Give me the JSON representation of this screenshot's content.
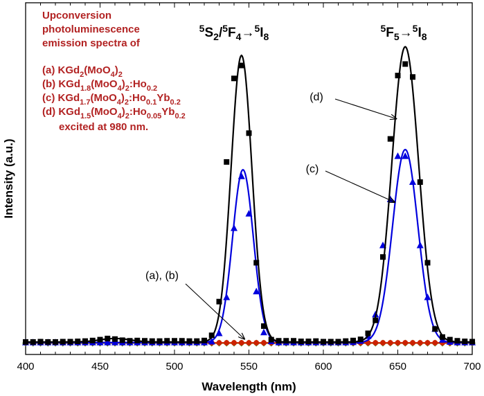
{
  "chart_data": {
    "type": "line",
    "title": "",
    "xlabel": "Wavelength (nm)",
    "ylabel": "Intensity (a.u.)",
    "xlim": [
      400,
      700
    ],
    "ylim": [
      0,
      100
    ],
    "x_ticks": [
      400,
      450,
      500,
      550,
      600,
      650,
      700
    ],
    "legend": {
      "heading": [
        "Upconversion",
        "photoluminescence",
        "emission spectra of"
      ],
      "entries": [
        {
          "id": "a",
          "parts": [
            [
              "(a) KGd",
              ""
            ],
            [
              "2",
              "sub"
            ],
            [
              "(MoO",
              ""
            ],
            [
              "4",
              "sub"
            ],
            [
              ")",
              ""
            ],
            [
              "2",
              "sub"
            ]
          ]
        },
        {
          "id": "b",
          "parts": [
            [
              "(b) KGd",
              ""
            ],
            [
              "1.8",
              "sub"
            ],
            [
              "(MoO",
              ""
            ],
            [
              "4",
              "sub"
            ],
            [
              ")",
              ""
            ],
            [
              "2",
              "sub"
            ],
            [
              ":Ho",
              ""
            ],
            [
              "0.2",
              "sub"
            ]
          ]
        },
        {
          "id": "c",
          "parts": [
            [
              "(c) KGd",
              ""
            ],
            [
              "1.7",
              "sub"
            ],
            [
              "(MoO",
              ""
            ],
            [
              "4",
              "sub"
            ],
            [
              ")",
              ""
            ],
            [
              "2",
              "sub"
            ],
            [
              ":Ho",
              ""
            ],
            [
              "0.1",
              "sub"
            ],
            [
              "Yb",
              ""
            ],
            [
              "0.2",
              "sub"
            ]
          ]
        },
        {
          "id": "d",
          "parts": [
            [
              "(d) KGd",
              ""
            ],
            [
              "1.5",
              "sub"
            ],
            [
              "(MoO",
              ""
            ],
            [
              "4",
              "sub"
            ],
            [
              ")",
              ""
            ],
            [
              "2",
              "sub"
            ],
            [
              ":Ho",
              ""
            ],
            [
              "0.05",
              "sub"
            ],
            [
              "Yb",
              ""
            ],
            [
              "0.2",
              "sub"
            ]
          ]
        }
      ],
      "footer": "excited at 980 nm."
    },
    "peak_labels": [
      {
        "x": 545,
        "parts": [
          [
            "5",
            "sup"
          ],
          [
            "S",
            ""
          ],
          [
            "2",
            "sub"
          ],
          [
            "/",
            ""
          ],
          [
            "5",
            "sup"
          ],
          [
            "F",
            ""
          ],
          [
            "4",
            "sub"
          ],
          [
            "→",
            ""
          ],
          [
            "5",
            "sup"
          ],
          [
            "I",
            ""
          ],
          [
            "8",
            "sub"
          ]
        ]
      },
      {
        "x": 655,
        "parts": [
          [
            "5",
            "sup"
          ],
          [
            "F",
            ""
          ],
          [
            "5",
            "sub"
          ],
          [
            "→",
            ""
          ],
          [
            "5",
            "sup"
          ],
          [
            "I",
            ""
          ],
          [
            "8",
            "sub"
          ]
        ]
      }
    ],
    "annotations": [
      {
        "text": "(d)",
        "target_x": 649,
        "target_y": 78
      },
      {
        "text": "(c)",
        "target_x": 648,
        "target_y": 49
      },
      {
        "text": "(a), (b)",
        "target_x": 547,
        "target_y": 1.5
      }
    ],
    "series": [
      {
        "name": "(d)",
        "color": "#000000",
        "marker": "square",
        "baseline": 0.5,
        "peaks": [
          {
            "center": 545,
            "sigma": 7.0,
            "height": 99.5
          },
          {
            "center": 655,
            "sigma": 9.0,
            "height": 102.5
          },
          {
            "center": 460,
            "sigma": 10.0,
            "height": 1.2
          }
        ],
        "markers_x": [
          400,
          405,
          410,
          415,
          420,
          425,
          430,
          435,
          440,
          445,
          450,
          455,
          460,
          465,
          470,
          475,
          480,
          485,
          490,
          495,
          500,
          505,
          510,
          515,
          520,
          525,
          530,
          535,
          540,
          545,
          550,
          555,
          560,
          565,
          570,
          575,
          580,
          585,
          590,
          595,
          600,
          605,
          610,
          615,
          620,
          625,
          630,
          635,
          640,
          645,
          650,
          655,
          660,
          665,
          670,
          675,
          680,
          685,
          690,
          695,
          700
        ],
        "markers_y": [
          0.5,
          0.5,
          0.6,
          0.5,
          0.5,
          0.6,
          0.6,
          0.7,
          0.8,
          1.0,
          1.3,
          1.7,
          1.5,
          1.1,
          0.9,
          1.0,
          0.9,
          0.8,
          0.8,
          0.9,
          0.9,
          0.9,
          0.8,
          0.8,
          1.0,
          2.8,
          14.5,
          63.0,
          92.0,
          96.5,
          73.0,
          28.0,
          6.0,
          1.3,
          0.9,
          0.9,
          0.9,
          0.7,
          0.7,
          0.8,
          0.6,
          0.6,
          0.6,
          0.8,
          1.0,
          1.4,
          3.5,
          8.0,
          30.0,
          71.0,
          93.0,
          97.0,
          92.5,
          56.0,
          28.0,
          5.0,
          2.2,
          1.3,
          0.9,
          0.7,
          0.6
        ]
      },
      {
        "name": "(c)",
        "color": "#0000dd",
        "marker": "triangle",
        "baseline": 0.3,
        "peaks": [
          {
            "center": 546,
            "sigma": 7.0,
            "height": 60.0
          },
          {
            "center": 655,
            "sigma": 8.5,
            "height": 67.0
          }
        ],
        "markers_x": [
          400,
          405,
          410,
          415,
          420,
          425,
          430,
          435,
          440,
          445,
          450,
          455,
          460,
          465,
          470,
          475,
          480,
          485,
          490,
          495,
          500,
          505,
          510,
          515,
          520,
          525,
          530,
          535,
          540,
          545,
          550,
          555,
          560,
          565,
          570,
          575,
          580,
          585,
          590,
          595,
          600,
          605,
          610,
          615,
          620,
          625,
          630,
          635,
          640,
          645,
          650,
          655,
          660,
          665,
          670,
          675,
          680,
          685,
          690,
          695,
          700
        ],
        "markers_y": [
          0.3,
          0.3,
          0.3,
          0.3,
          0.3,
          0.3,
          0.3,
          0.3,
          0.3,
          0.3,
          0.3,
          0.3,
          0.3,
          0.3,
          0.3,
          0.3,
          0.3,
          0.3,
          0.3,
          0.3,
          0.3,
          0.3,
          0.3,
          0.3,
          0.3,
          0.6,
          3.5,
          16.0,
          40.0,
          58.0,
          45.0,
          18.0,
          3.8,
          0.7,
          0.3,
          0.3,
          0.3,
          0.3,
          0.3,
          0.3,
          0.3,
          0.3,
          0.3,
          0.3,
          0.4,
          0.8,
          2.5,
          10.0,
          34.0,
          50.0,
          65.0,
          65.0,
          56.0,
          34.0,
          16.0,
          5.0,
          1.2,
          0.5,
          0.3,
          0.3,
          0.3
        ]
      },
      {
        "name": "(b)",
        "color": "#cc2200",
        "marker": "circle",
        "baseline": 0.2,
        "peaks": [],
        "markers_x": [
          400,
          405,
          410,
          415,
          420,
          425,
          430,
          435,
          440,
          445,
          450,
          455,
          460,
          465,
          470,
          475,
          480,
          485,
          490,
          495,
          500,
          505,
          510,
          515,
          520,
          525,
          530,
          535,
          540,
          545,
          550,
          555,
          560,
          565,
          570,
          575,
          580,
          585,
          590,
          595,
          600,
          605,
          610,
          615,
          620,
          625,
          630,
          635,
          640,
          645,
          650,
          655,
          660,
          665,
          670,
          675,
          680,
          685,
          690,
          695,
          700
        ],
        "markers_y": [
          0.2,
          0.2,
          0.2,
          0.2,
          0.2,
          0.2,
          0.2,
          0.2,
          0.2,
          0.2,
          0.2,
          0.2,
          0.2,
          0.2,
          0.2,
          0.2,
          0.2,
          0.2,
          0.2,
          0.2,
          0.2,
          0.2,
          0.2,
          0.2,
          0.2,
          0.2,
          0.2,
          0.2,
          0.2,
          0.2,
          0.2,
          0.2,
          0.2,
          0.2,
          0.2,
          0.2,
          0.2,
          0.2,
          0.2,
          0.2,
          0.2,
          0.2,
          0.2,
          0.2,
          0.2,
          0.2,
          0.2,
          0.2,
          0.2,
          0.2,
          0.2,
          0.2,
          0.2,
          0.2,
          0.2,
          0.2,
          0.2,
          0.2,
          0.2,
          0.2,
          0.2
        ]
      },
      {
        "name": "(a)",
        "color": "#558822",
        "marker": "diamond",
        "baseline": 0.1,
        "peaks": [],
        "markers_x": [
          400,
          405,
          410,
          415,
          420,
          425,
          430,
          435,
          440,
          445,
          450,
          455,
          460,
          465,
          470,
          475,
          480,
          485,
          490,
          495,
          500,
          505,
          510,
          515,
          520,
          525,
          530,
          535,
          540,
          545,
          550,
          555,
          560,
          565,
          570,
          575,
          580,
          585,
          590,
          595,
          600,
          605,
          610,
          615,
          620,
          625,
          630,
          635,
          640,
          645,
          650,
          655,
          660,
          665,
          670,
          675,
          680,
          685,
          690,
          695,
          700
        ],
        "markers_y": [
          0.1,
          0.1,
          0.1,
          0.1,
          0.1,
          0.1,
          0.1,
          0.1,
          0.1,
          0.1,
          0.1,
          0.1,
          0.1,
          0.1,
          0.1,
          0.1,
          0.1,
          0.1,
          0.1,
          0.1,
          0.1,
          0.1,
          0.1,
          0.1,
          0.1,
          0.1,
          0.1,
          0.1,
          0.1,
          0.1,
          0.1,
          0.1,
          0.1,
          0.1,
          0.1,
          0.1,
          0.1,
          0.1,
          0.1,
          0.1,
          0.1,
          0.1,
          0.1,
          0.1,
          0.1,
          0.1,
          0.1,
          0.1,
          0.1,
          0.1,
          0.1,
          0.1,
          0.1,
          0.1,
          0.1,
          0.1,
          0.1,
          0.1,
          0.1,
          0.1,
          0.1
        ]
      }
    ]
  }
}
